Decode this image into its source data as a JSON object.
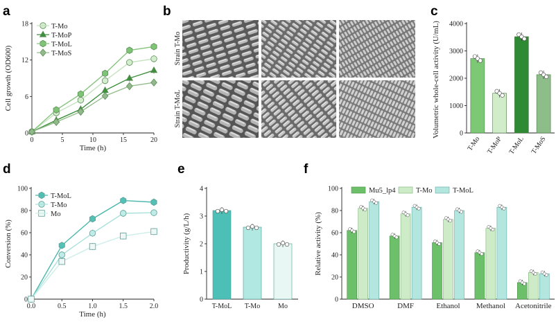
{
  "panels": {
    "a": "a",
    "b": "b",
    "c": "c",
    "d": "d",
    "e": "e",
    "f": "f"
  },
  "sem": {
    "row_labels": [
      "Strain T-Mo",
      "Strain T-MoL"
    ]
  },
  "colors": {
    "T-Mo": "#c7e6bf",
    "T-MoP": "#3f8f3f",
    "T-MoL": "#7fc476",
    "T-MoS": "#92b98b",
    "T-MoL_teal": "#4cbfb6",
    "T-Mo_teal": "#aee6e0",
    "Mo_teal": "#e4f6f3",
    "Mu5_lp4": "#6cc06a"
  },
  "chart_data": [
    {
      "id": "a",
      "type": "line",
      "xlabel": "Time (h)",
      "ylabel": "Cell growth (OD600)",
      "xlim": [
        0,
        20
      ],
      "ylim": [
        0,
        18
      ],
      "xticks": [
        "0",
        "5",
        "10",
        "15",
        "20"
      ],
      "yticks": [
        "0",
        "6",
        "12",
        "18"
      ],
      "x": [
        0,
        4,
        8,
        12,
        16,
        20
      ],
      "legend_position": "top-left",
      "series": [
        {
          "name": "T-Mo",
          "marker": "circle",
          "values": [
            0.2,
            3.3,
            5.4,
            8.6,
            11.6,
            12.2
          ]
        },
        {
          "name": "T-MoP",
          "marker": "triangle",
          "values": [
            0.2,
            2.1,
            3.9,
            7.0,
            9.0,
            10.3
          ]
        },
        {
          "name": "T-MoL",
          "marker": "hexagon",
          "values": [
            0.2,
            3.8,
            6.4,
            9.8,
            13.6,
            14.2
          ]
        },
        {
          "name": "T-MoS",
          "marker": "diamond",
          "values": [
            0.2,
            1.8,
            3.5,
            6.1,
            7.7,
            8.3
          ]
        }
      ]
    },
    {
      "id": "c",
      "type": "bar",
      "ylabel": "Volumetric whole-cell activity (U/mL)",
      "ylim": [
        0,
        4000
      ],
      "yticks": [
        "0",
        "1000",
        "2000",
        "3000",
        "4000"
      ],
      "categories": [
        "T-Mo",
        "T-MoP",
        "T-MoL",
        "T-MoS"
      ],
      "values": [
        2720,
        1450,
        3520,
        2130
      ]
    },
    {
      "id": "d",
      "type": "line",
      "xlabel": "Time (h)",
      "ylabel": "Conversion (%)",
      "xlim": [
        0,
        2
      ],
      "ylim": [
        0,
        100
      ],
      "xticks": [
        "0.0",
        "0.5",
        "1.0",
        "1.5",
        "2.0"
      ],
      "yticks": [
        "0",
        "20",
        "40",
        "60",
        "80",
        "100"
      ],
      "x": [
        0,
        0.5,
        1.0,
        1.5,
        2.0
      ],
      "legend_position": "top-left",
      "series": [
        {
          "name": "T-MoL",
          "marker": "hexagon",
          "values": [
            0,
            48.5,
            72.5,
            89,
            87.5
          ]
        },
        {
          "name": "T-Mo",
          "marker": "circle",
          "values": [
            0,
            40,
            59.5,
            77.5,
            78
          ]
        },
        {
          "name": "Mo",
          "marker": "square",
          "values": [
            0,
            34,
            47.5,
            57,
            61
          ]
        }
      ]
    },
    {
      "id": "e",
      "type": "bar",
      "ylabel": "Productivity (g/L/h)",
      "ylim": [
        0,
        4
      ],
      "yticks": [
        "0",
        "1",
        "2",
        "3",
        "4"
      ],
      "categories": [
        "T-MoL",
        "T-Mo",
        "Mo"
      ],
      "values": [
        3.2,
        2.6,
        2.0
      ]
    },
    {
      "id": "f",
      "type": "bar",
      "ylabel": "Relative activity (%)",
      "ylim": [
        0,
        100
      ],
      "yticks": [
        "0",
        "20",
        "40",
        "60",
        "80",
        "100"
      ],
      "categories": [
        "DMSO",
        "DMF",
        "Ethanol",
        "Methanol",
        "Acetonitrile"
      ],
      "legend_position": "top",
      "series": [
        {
          "name": "Mu5_lp4",
          "values": [
            62,
            57,
            51,
            42,
            15
          ]
        },
        {
          "name": "T-Mo",
          "values": [
            82,
            77,
            72,
            64,
            24
          ]
        },
        {
          "name": "T-MoL",
          "values": [
            88,
            83,
            80,
            83,
            23
          ]
        }
      ]
    }
  ]
}
